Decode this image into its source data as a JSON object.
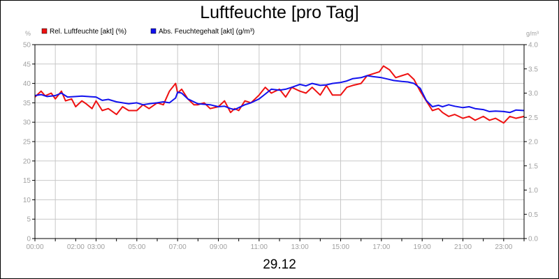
{
  "chart_data": {
    "type": "line",
    "title": "Luftfeuchte [pro Tag]",
    "date_label": "29.12",
    "y_left_unit": "%",
    "y_right_unit": "g/m³",
    "ylim_left": [
      0,
      50
    ],
    "ylim_right": [
      0,
      4
    ],
    "yticks_left": [
      "0",
      "5",
      "10",
      "15",
      "20",
      "25",
      "30",
      "35",
      "40",
      "45",
      "50"
    ],
    "yticks_right": [
      "0.0",
      "0.5",
      "1.0",
      "1.5",
      "2.0",
      "2.5",
      "3.0",
      "3.5",
      "4.0"
    ],
    "xlim_hours": [
      0,
      24
    ],
    "xticks": [
      {
        "h": 0,
        "label": "00:00"
      },
      {
        "h": 2,
        "label": "02:00"
      },
      {
        "h": 3,
        "label": "03:00"
      },
      {
        "h": 5,
        "label": "05:00"
      },
      {
        "h": 7,
        "label": "07:00"
      },
      {
        "h": 9,
        "label": "09:00"
      },
      {
        "h": 11,
        "label": "11:00"
      },
      {
        "h": 13,
        "label": "13:00"
      },
      {
        "h": 15,
        "label": "15:00"
      },
      {
        "h": 17,
        "label": "17:00"
      },
      {
        "h": 19,
        "label": "19:00"
      },
      {
        "h": 21,
        "label": "21:00"
      },
      {
        "h": 23,
        "label": "23:00"
      }
    ],
    "grid": true,
    "legend_position": "top-left",
    "series": [
      {
        "name": "Rel. Luftfeuchte [akt] (%)",
        "axis": "left",
        "color": "#ee1111",
        "x": [
          0,
          0.3,
          0.5,
          0.8,
          1,
          1.3,
          1.5,
          1.8,
          2,
          2.3,
          2.5,
          2.8,
          3,
          3.3,
          3.6,
          4,
          4.3,
          4.6,
          5,
          5.3,
          5.6,
          6,
          6.3,
          6.6,
          6.9,
          7,
          7.2,
          7.5,
          7.8,
          8,
          8.3,
          8.6,
          9,
          9.3,
          9.6,
          9.8,
          10,
          10.3,
          10.6,
          11,
          11.3,
          11.6,
          12,
          12.3,
          12.6,
          13,
          13.3,
          13.6,
          14,
          14.3,
          14.6,
          15,
          15.3,
          15.6,
          16,
          16.3,
          16.6,
          16.9,
          17.1,
          17.4,
          17.7,
          18,
          18.3,
          18.6,
          18.9,
          19.2,
          19.5,
          19.8,
          20,
          20.3,
          20.6,
          21,
          21.3,
          21.6,
          22,
          22.3,
          22.6,
          23,
          23.3,
          23.6,
          24
        ],
        "values": [
          36.5,
          38,
          36.8,
          37.5,
          36,
          38,
          35.5,
          36,
          34,
          35.5,
          34.8,
          33.5,
          35.5,
          33,
          33.5,
          32,
          34,
          33,
          33,
          34.5,
          33.5,
          35,
          34.5,
          38,
          40,
          37.5,
          38.5,
          36,
          34.5,
          34.5,
          35,
          33.5,
          34,
          35.5,
          32.5,
          33.5,
          33,
          35.5,
          35,
          37,
          39,
          37.5,
          38.5,
          36.5,
          39,
          38,
          37.5,
          39,
          37,
          39.5,
          37,
          37,
          39,
          39.5,
          40,
          42,
          42.5,
          43,
          44.5,
          43.5,
          41.5,
          42,
          42.5,
          41,
          38,
          35.5,
          33,
          33.5,
          32.5,
          31.5,
          32,
          31,
          31.5,
          30.5,
          31.5,
          30.5,
          31,
          29.8,
          31.5,
          31,
          31.5
        ]
      },
      {
        "name": "Abs. Feuchtegehalt [akt] (g/m³)",
        "axis": "right",
        "color": "#1111ee",
        "x": [
          0,
          0.3,
          0.6,
          1,
          1.3,
          1.6,
          2,
          2.3,
          2.6,
          3,
          3.3,
          3.6,
          4,
          4.3,
          4.6,
          5,
          5.3,
          5.6,
          6,
          6.3,
          6.6,
          6.9,
          7,
          7.2,
          7.5,
          7.8,
          8,
          8.3,
          8.6,
          9,
          9.3,
          9.6,
          9.8,
          10,
          10.3,
          10.6,
          11,
          11.3,
          11.6,
          12,
          12.3,
          12.6,
          13,
          13.3,
          13.6,
          14,
          14.3,
          14.6,
          15,
          15.3,
          15.6,
          16,
          16.3,
          16.6,
          17,
          17.3,
          17.6,
          18,
          18.3,
          18.6,
          18.9,
          19.2,
          19.5,
          19.8,
          20,
          20.3,
          20.6,
          21,
          21.3,
          21.6,
          22,
          22.3,
          22.6,
          23,
          23.3,
          23.6,
          24
        ],
        "values": [
          2.95,
          2.97,
          2.93,
          2.95,
          3.0,
          2.92,
          2.93,
          2.94,
          2.93,
          2.92,
          2.85,
          2.87,
          2.82,
          2.8,
          2.78,
          2.8,
          2.76,
          2.78,
          2.8,
          2.82,
          2.8,
          2.9,
          3.02,
          3.0,
          2.88,
          2.82,
          2.78,
          2.77,
          2.76,
          2.72,
          2.73,
          2.68,
          2.66,
          2.7,
          2.76,
          2.8,
          2.88,
          2.98,
          3.08,
          3.06,
          3.08,
          3.12,
          3.18,
          3.15,
          3.2,
          3.16,
          3.17,
          3.2,
          3.22,
          3.25,
          3.3,
          3.32,
          3.36,
          3.34,
          3.32,
          3.29,
          3.26,
          3.24,
          3.23,
          3.2,
          3.1,
          2.85,
          2.72,
          2.75,
          2.72,
          2.76,
          2.73,
          2.7,
          2.72,
          2.68,
          2.66,
          2.62,
          2.63,
          2.62,
          2.6,
          2.65,
          2.64
        ]
      }
    ]
  }
}
